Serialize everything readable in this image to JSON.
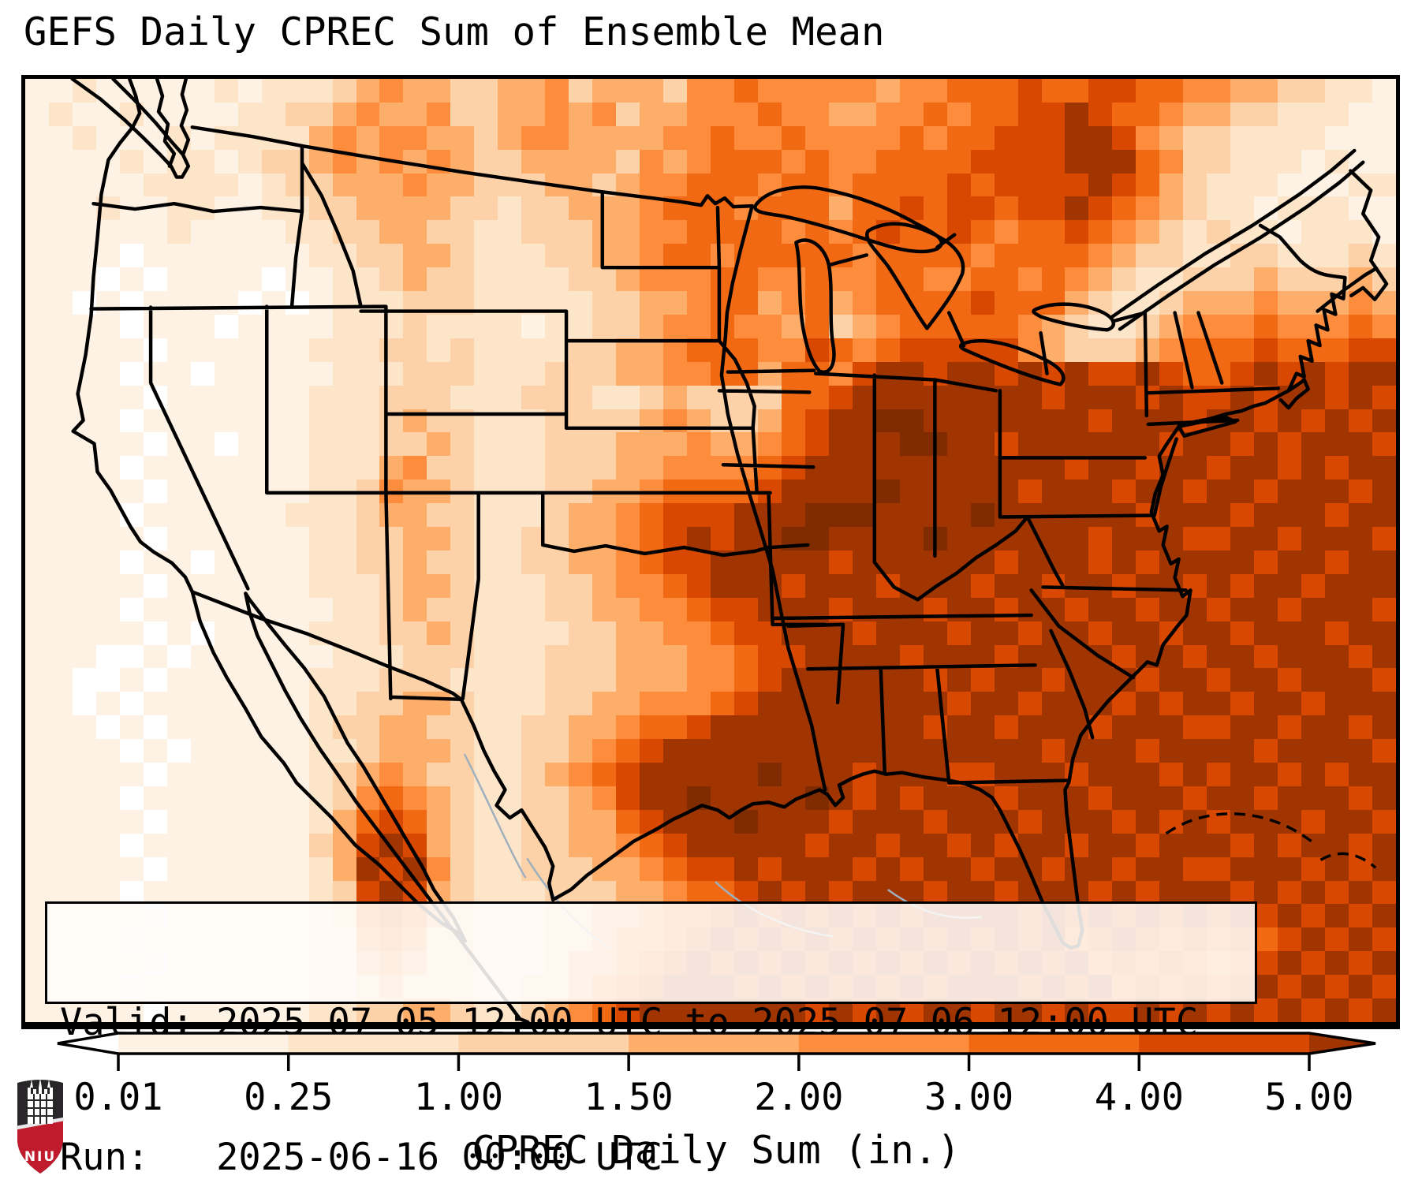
{
  "title": "GEFS Daily CPREC Sum of Ensemble Mean",
  "info_box": {
    "valid_label": "Valid: ",
    "valid_value": "2025-07-05 12:00 UTC to 2025-07-06 12:00 UTC",
    "run_label": "Run:   ",
    "run_value": "2025-06-16 00:00 UTC"
  },
  "colorbar": {
    "label": "CPREC Daily Sum (in.)",
    "ticks": [
      "0.01",
      "0.25",
      "1.00",
      "1.50",
      "2.00",
      "3.00",
      "4.00",
      "5.00"
    ]
  },
  "logo": {
    "text": "NIU"
  },
  "chart_data": {
    "type": "heatmap",
    "title": "GEFS Daily CPREC Sum of Ensemble Mean",
    "colorbar_label": "CPREC Daily Sum (in.)",
    "region": "Continental United States with Mexico, Canada, Gulf of Mexico and western Atlantic",
    "valid_period": "2025-07-05 12:00 UTC to 2025-07-06 12:00 UTC",
    "run": "2025-06-16 00:00 UTC",
    "levels_inches": [
      0.01,
      0.25,
      1.0,
      1.5,
      2.0,
      3.0,
      4.0,
      5.0
    ],
    "legend_position": "bottom",
    "under_color": "#ffffff",
    "over_color": "#a03502",
    "palette": [
      "#ffffff",
      "#fdf2e4",
      "#fde5ca",
      "#fdd2a8",
      "#fdae6b",
      "#fd8d3c",
      "#f16913",
      "#d94801",
      "#a03502",
      "#802c03"
    ],
    "palette_meaning": "index 0 = <0.01 in; 1..7 = successive level bins up to 5.00 in; 8,9 = >5.00 in",
    "grid_note": "40 rows x 58 cols, each char is a palette index covering ~30px of the map, north at top",
    "grid_rows": [
      "1121111121222345443344534443556555554556667667766554433221",
      "1211211112233454453344545344555655445565667787665443322211",
      "1121112122224545544345544445565565555656677788754332222111",
      "1111212212334545454334444354566656556666777788865332221211",
      "1111122221233444544333443455666566566667677778764322211122",
      "1112112211223344443323344456665666466767767787654322122211",
      "1111112111122334433223334455666656567667656676543232212221",
      "1111011111112233443222334456656666656666566665433223322232",
      "1110101111011223433222233455566556556655665654322333433343",
      "1101011110101222333222223344566456456666766643223444544454",
      "1111011101111222322221223345565546345666665432234555655565",
      "1111101111112223323222233445666557656777775433345666766677",
      "1111011011111222333222333445566466578878878787787667878788",
      "1111101111112223332223332234333366788888888788878778788787",
      "1111011111112223433222333345433467889988888887888788787878",
      "1111101101112223343222333444544567888998878888887887878887",
      "1111011111112224533222333445555678888888888878878878878788",
      "1111101111112235443222334456666788889888887888788788788878",
      "1111011111122234433222344567778889998888988888878887888788",
      "1111101111112233443223344567878899888898888887888778878887",
      "1111011011112233433223344567788888788888878887878888788788",
      "1111101111112223443222334556788878887888788788788787887888",
      "1111011111111223433222334455677888788878878878878878878887",
      "1111101011112223343222233445567788878887887887887887888788",
      "1110010111111222333222333444556778888788878888788788788878",
      "1100101111112223332222333444556788888878788788878878878887",
      "1101011111112233443222334455567888888887887888787887887888",
      "1110101111112334433223344566788888888878878887888778878878",
      "1111010111112234443223345678888888888888888788878888788887",
      "1111101111112345433223456788888988878887788878887878878788",
      "1111011111112356543223345788988889878788878887888788788878",
      "1111101111112467643223344678889888788878887888787878887887",
      "1111011111113478743223344567888887887887878878878887878878",
      "1111101111112487853223334456778788878788788788788778887878",
      "1111011111112378743222333445667878788878878887878887878787",
      "1111101111112367643222334456678787878788887878787878787878",
      "1111011111112256533222334556787878787878787867876767678787",
      "1111101111112245433222344567878787878787878786767656787878",
      "1111011111112234333223345678887878787878887878676767878787",
      "1111101111112233443223456788888887878788788787787878787878"
    ]
  }
}
